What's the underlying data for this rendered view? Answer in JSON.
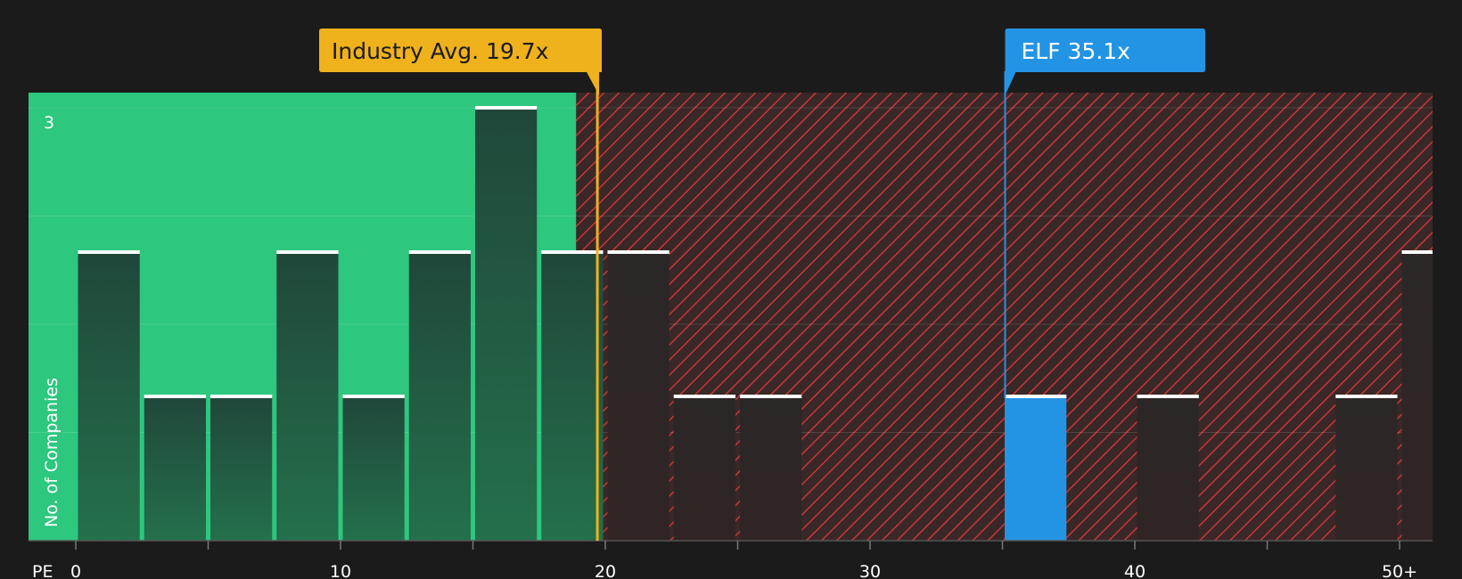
{
  "chart_data": {
    "type": "bar",
    "xlabel": "PE",
    "ylabel": "No. of Companies",
    "x_tick_labels": [
      "0",
      "10",
      "20",
      "30",
      "40",
      "50+"
    ],
    "x_tick_values": [
      0,
      10,
      20,
      30,
      40,
      50
    ],
    "y_tick_labels": [
      "3"
    ],
    "xlim": [
      -1.8,
      51.4
    ],
    "ylim": [
      0,
      3.1
    ],
    "bin_width": 2.5,
    "bins": [
      {
        "x_start": 0,
        "value": 2
      },
      {
        "x_start": 2.5,
        "value": 1
      },
      {
        "x_start": 5,
        "value": 1
      },
      {
        "x_start": 7.5,
        "value": 2
      },
      {
        "x_start": 10,
        "value": 1
      },
      {
        "x_start": 12.5,
        "value": 2
      },
      {
        "x_start": 15,
        "value": 3
      },
      {
        "x_start": 17.5,
        "value": 2
      },
      {
        "x_start": 20,
        "value": 2
      },
      {
        "x_start": 22.5,
        "value": 1
      },
      {
        "x_start": 25,
        "value": 1
      },
      {
        "x_start": 35,
        "value": 1,
        "highlight": true
      },
      {
        "x_start": 40,
        "value": 1
      },
      {
        "x_start": 47.5,
        "value": 1
      },
      {
        "x_start": 50,
        "value": 2
      }
    ],
    "green_zone_end": 18.9,
    "industry_avg": {
      "label": "Industry Avg. 19.7x",
      "value": 19.7
    },
    "company": {
      "label": "ELF 35.1x",
      "value": 35.1
    },
    "colors": {
      "background": "#1b1b1b",
      "green_zone": "#2dc77e",
      "red_zone": "#3a2727",
      "red_hatch": "#c8383a",
      "bar": "#1f4a37",
      "bar_red_zone": "#2c2424",
      "highlight_bar": "#2394e3",
      "bar_top": "#ffffff",
      "industry_avg": "#efb11c",
      "company": "#2394e3"
    }
  }
}
